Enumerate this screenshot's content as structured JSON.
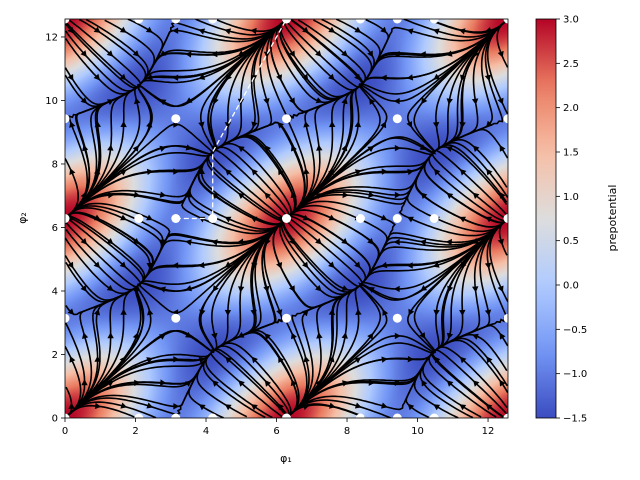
{
  "chart_data": {
    "type": "heatmap",
    "title": "",
    "xlabel": "φ₁",
    "ylabel": "φ₂",
    "xlim": [
      0,
      12.566
    ],
    "ylim": [
      0,
      12.566
    ],
    "xticks": [
      0,
      2,
      4,
      6,
      8,
      10,
      12
    ],
    "yticks": [
      0,
      2,
      4,
      6,
      8,
      10,
      12
    ],
    "colorbar": {
      "label": "prepotential",
      "range": [
        -1.5,
        3.0
      ],
      "ticks": [
        -1.5,
        -1.0,
        -0.5,
        0.0,
        0.5,
        1.0,
        1.5,
        2.0,
        2.5,
        3.0
      ],
      "tick_labels": [
        "−1.5",
        "−1.0",
        "−0.5",
        "0.0",
        "0.5",
        "1.0",
        "1.5",
        "2.0",
        "2.5",
        "3.0"
      ],
      "colormap": "coolwarm",
      "colors": [
        "#3b4cc0",
        "#7396f5",
        "#b0cbff",
        "#dddddd",
        "#f6bfa6",
        "#ea7b60",
        "#b40426"
      ]
    },
    "field_function": "cos(phi1) + cos(phi2) + cos(phi1 - phi2)",
    "stream_color": "#000000",
    "critical_points": [
      [
        0,
        0
      ],
      [
        2.094,
        0
      ],
      [
        3.142,
        0
      ],
      [
        4.189,
        0
      ],
      [
        6.283,
        0
      ],
      [
        8.378,
        0
      ],
      [
        9.425,
        0
      ],
      [
        10.472,
        0
      ],
      [
        12.566,
        0
      ],
      [
        0,
        3.142
      ],
      [
        3.142,
        3.142
      ],
      [
        6.283,
        3.142
      ],
      [
        9.425,
        3.142
      ],
      [
        12.566,
        3.142
      ],
      [
        0,
        6.283
      ],
      [
        2.094,
        6.283
      ],
      [
        3.142,
        6.283
      ],
      [
        4.189,
        6.283
      ],
      [
        6.283,
        6.283
      ],
      [
        8.378,
        6.283
      ],
      [
        9.425,
        6.283
      ],
      [
        10.472,
        6.283
      ],
      [
        12.566,
        6.283
      ],
      [
        0,
        9.425
      ],
      [
        3.142,
        9.425
      ],
      [
        6.283,
        9.425
      ],
      [
        9.425,
        9.425
      ],
      [
        12.566,
        9.425
      ],
      [
        0,
        12.566
      ],
      [
        2.094,
        12.566
      ],
      [
        3.142,
        12.566
      ],
      [
        4.189,
        12.566
      ],
      [
        6.283,
        12.566
      ],
      [
        8.378,
        12.566
      ],
      [
        9.425,
        12.566
      ],
      [
        10.472,
        12.566
      ],
      [
        12.566,
        12.566
      ]
    ],
    "point_color": "#ffffff",
    "dashed_path": [
      [
        3.142,
        6.283
      ],
      [
        4.189,
        6.283
      ],
      [
        4.189,
        8.378
      ],
      [
        6.283,
        12.566
      ]
    ],
    "dashed_color": "#ffffff"
  }
}
